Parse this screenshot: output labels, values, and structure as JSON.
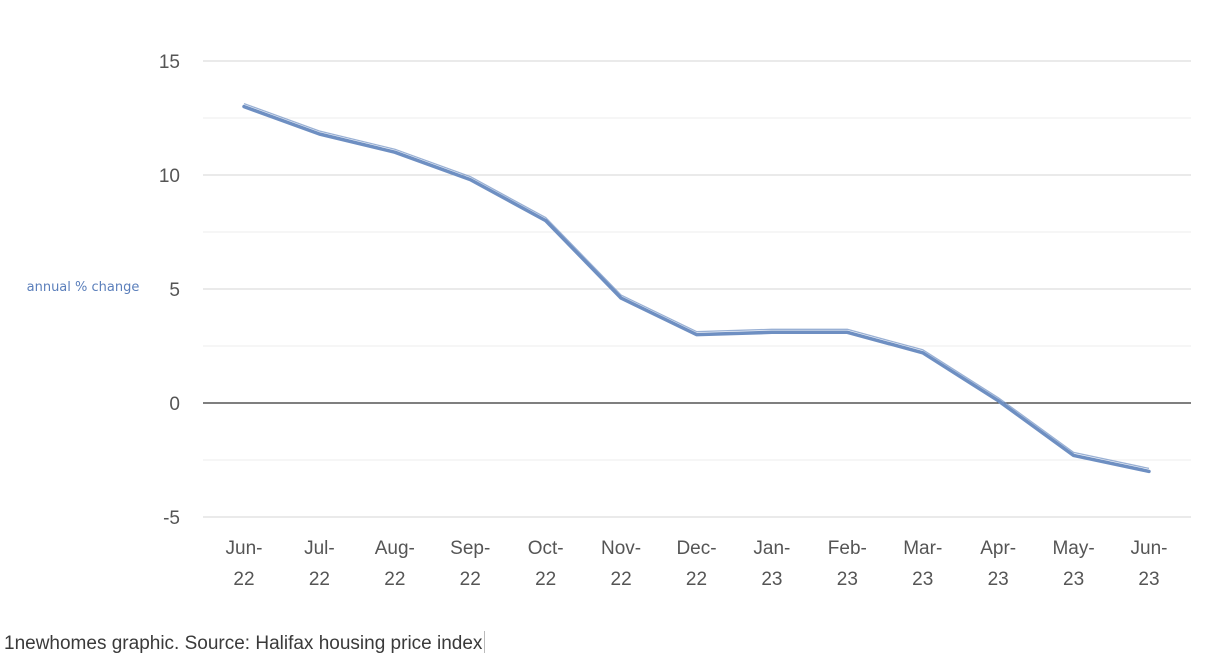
{
  "chart_data": {
    "type": "line",
    "title": "",
    "xlabel": "",
    "ylabel": "annual % change",
    "categories": [
      [
        "Jun-",
        "22"
      ],
      [
        "Jul-",
        "22"
      ],
      [
        "Aug-",
        "22"
      ],
      [
        "Sep-",
        "22"
      ],
      [
        "Oct-",
        "22"
      ],
      [
        "Nov-",
        "22"
      ],
      [
        "Dec-",
        "22"
      ],
      [
        "Jan-",
        "23"
      ],
      [
        "Feb-",
        "23"
      ],
      [
        "Mar-",
        "23"
      ],
      [
        "Apr-",
        "23"
      ],
      [
        "May-",
        "23"
      ],
      [
        "Jun-",
        "23"
      ]
    ],
    "series": [
      {
        "values": [
          13.0,
          11.8,
          11.0,
          9.8,
          8.0,
          4.6,
          3.0,
          3.1,
          3.1,
          2.2,
          0.1,
          -2.3,
          -3.0
        ]
      }
    ],
    "ylim": [
      -5,
      15
    ],
    "yticks": [
      15,
      10,
      5,
      0,
      -5
    ],
    "grid": true,
    "legend": "none",
    "colors": {
      "line": "#6e8fc2",
      "zero_line": "#333333",
      "grid": "#d6d6d6",
      "minor_grid": "#ececec",
      "ylabel": "#5b7fbb"
    }
  },
  "caption": "1newhomes graphic. Source: Halifax housing price index"
}
